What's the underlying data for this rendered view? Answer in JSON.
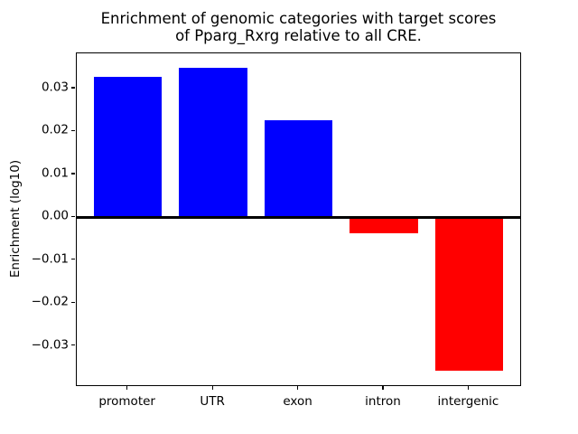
{
  "chart_data": {
    "type": "bar",
    "title_lines": [
      "Enrichment of genomic categories with target scores",
      "of Pparg_Rxrg relative to all CRE."
    ],
    "ylabel": "Enrichment (log10)",
    "xlabel": "",
    "categories": [
      "promoter",
      "UTR",
      "exon",
      "intron",
      "intergenic"
    ],
    "values": [
      0.0327,
      0.0349,
      0.0226,
      -0.0038,
      -0.0358
    ],
    "bar_colors": [
      "#0000ff",
      "#0000ff",
      "#0000ff",
      "#ff0000",
      "#ff0000"
    ],
    "positive_color": "#0000ff",
    "negative_color": "#ff0000",
    "yticks": [
      {
        "value": 0.03,
        "label": "0.03"
      },
      {
        "value": 0.02,
        "label": "0.02"
      },
      {
        "value": 0.01,
        "label": "0.01"
      },
      {
        "value": 0.0,
        "label": "0.00"
      },
      {
        "value": -0.01,
        "label": "−0.01"
      },
      {
        "value": -0.02,
        "label": "−0.02"
      },
      {
        "value": -0.03,
        "label": "−0.03"
      }
    ],
    "ylim": [
      -0.0395,
      0.0382
    ],
    "zero_line": true,
    "grid": false,
    "legend": false
  }
}
